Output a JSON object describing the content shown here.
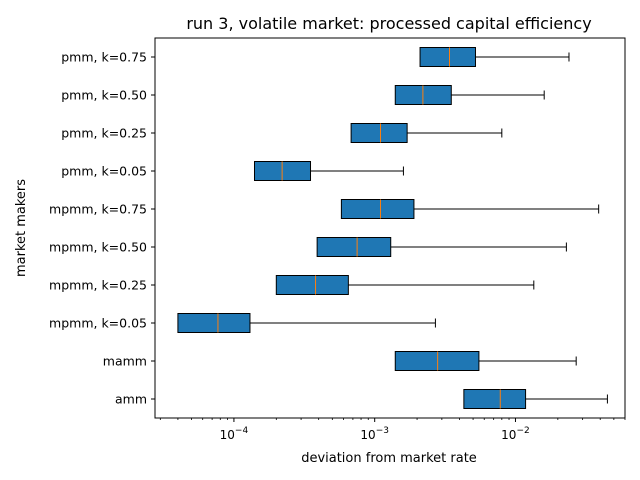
{
  "chart_data": {
    "type": "boxplot",
    "orientation": "horizontal",
    "title": "run 3, volatile market: processed capital efficiency",
    "xlabel": "deviation from market rate",
    "ylabel": "market makers",
    "xscale": "log",
    "xlim": [
      2.75e-05,
      0.06
    ],
    "x_ticks": [
      {
        "value": 0.0001,
        "base": "10",
        "exp": "−4"
      },
      {
        "value": 0.001,
        "base": "10",
        "exp": "−3"
      },
      {
        "value": 0.01,
        "base": "10",
        "exp": "−2"
      }
    ],
    "grid": false,
    "colors": {
      "box": "#1f77b4",
      "median": "#ff7f0e",
      "line": "#000000"
    },
    "categories": [
      "pmm, k=0.75",
      "pmm, k=0.50",
      "pmm, k=0.25",
      "pmm, k=0.05",
      "mpmm, k=0.75",
      "mpmm, k=0.50",
      "mpmm, k=0.25",
      "mpmm, k=0.05",
      "mamm",
      "amm"
    ],
    "boxes": [
      {
        "label": "pmm, k=0.75",
        "whislo": 0.0021,
        "q1": 0.0021,
        "median": 0.0034,
        "q3": 0.0052,
        "whishi": 0.024
      },
      {
        "label": "pmm, k=0.50",
        "whislo": 0.0014,
        "q1": 0.0014,
        "median": 0.0022,
        "q3": 0.0035,
        "whishi": 0.016
      },
      {
        "label": "pmm, k=0.25",
        "whislo": 0.00068,
        "q1": 0.00068,
        "median": 0.0011,
        "q3": 0.0017,
        "whishi": 0.008
      },
      {
        "label": "pmm, k=0.05",
        "whislo": 0.00014,
        "q1": 0.00014,
        "median": 0.00022,
        "q3": 0.00035,
        "whishi": 0.0016
      },
      {
        "label": "mpmm, k=0.75",
        "whislo": 0.00058,
        "q1": 0.00058,
        "median": 0.0011,
        "q3": 0.0019,
        "whishi": 0.039
      },
      {
        "label": "mpmm, k=0.50",
        "whislo": 0.00039,
        "q1": 0.00039,
        "median": 0.00075,
        "q3": 0.0013,
        "whishi": 0.023
      },
      {
        "label": "mpmm, k=0.25",
        "whislo": 0.0002,
        "q1": 0.0002,
        "median": 0.00038,
        "q3": 0.00065,
        "whishi": 0.0135
      },
      {
        "label": "mpmm, k=0.05",
        "whislo": 4e-05,
        "q1": 4e-05,
        "median": 7.7e-05,
        "q3": 0.00013,
        "whishi": 0.0027
      },
      {
        "label": "mamm",
        "whislo": 0.0014,
        "q1": 0.0014,
        "median": 0.0028,
        "q3": 0.0055,
        "whishi": 0.027
      },
      {
        "label": "amm",
        "whislo": 0.0043,
        "q1": 0.0043,
        "median": 0.0078,
        "q3": 0.0118,
        "whishi": 0.045
      }
    ]
  }
}
